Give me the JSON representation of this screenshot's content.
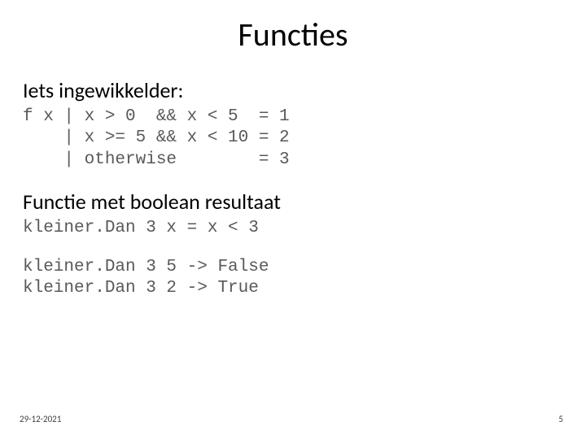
{
  "title": "Functies",
  "section1": {
    "heading": "Iets ingewikkelder:",
    "code": "f x | x > 0  && x < 5  = 1\n    | x >= 5 && x < 10 = 2\n    | otherwise        = 3"
  },
  "section2": {
    "heading": "Functie met boolean resultaat",
    "code1": "kleiner.Dan 3 x = x < 3",
    "code2": "kleiner.Dan 3 5 -> False\nkleiner.Dan 3 2 -> True"
  },
  "footer": {
    "date": "29-12-2021",
    "page": "5"
  },
  "style": {
    "background_color": "#ffffff",
    "title_color": "#000000",
    "title_fontsize": 40,
    "subheading_fontsize": 26,
    "code_color": "#595959",
    "code_fontsize": 21,
    "code_fontfamily": "Courier New",
    "footer_fontsize": 11,
    "footer_color": "#404040",
    "slide_width": 720,
    "slide_height": 540
  }
}
